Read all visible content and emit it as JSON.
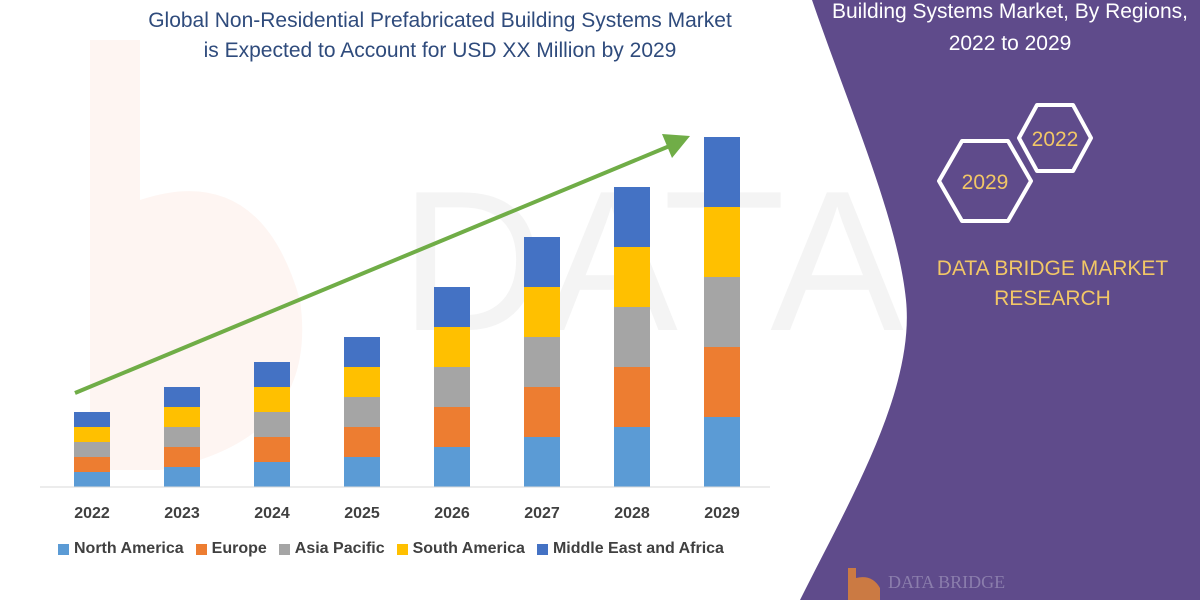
{
  "title": {
    "line1": "Global Non-Residential Prefabricated Building Systems Market",
    "line2": "is Expected to Account for USD XX Million by 2029"
  },
  "side_panel": {
    "title_line1": "Building Systems Market, By Regions,",
    "title_line2": "2022 to 2029",
    "hex_top": "2022",
    "hex_bottom": "2029",
    "brand_line1": "DATA BRIDGE MARKET",
    "brand_line2": "RESEARCH",
    "background_color": "#5f4b8b",
    "accent_color": "#f2c766",
    "logo_text": "DATA BRIDGE"
  },
  "chart_data": {
    "type": "bar",
    "stacked": true,
    "title": "",
    "xlabel": "",
    "ylabel": "",
    "ylim": [
      0,
      360
    ],
    "grid": false,
    "legend_position": "bottom",
    "trend_arrow": true,
    "categories": [
      "2022",
      "2023",
      "2024",
      "2025",
      "2026",
      "2027",
      "2028",
      "2029"
    ],
    "series": [
      {
        "name": "North America",
        "color": "#5b9bd5",
        "values": [
          15,
          20,
          25,
          30,
          40,
          50,
          60,
          70
        ]
      },
      {
        "name": "Europe",
        "color": "#ed7d31",
        "values": [
          15,
          20,
          25,
          30,
          40,
          50,
          60,
          70
        ]
      },
      {
        "name": "Asia Pacific",
        "color": "#a5a5a5",
        "values": [
          15,
          20,
          25,
          30,
          40,
          50,
          60,
          70
        ]
      },
      {
        "name": "South America",
        "color": "#ffc000",
        "values": [
          15,
          20,
          25,
          30,
          40,
          50,
          60,
          70
        ]
      },
      {
        "name": "Middle East and Africa",
        "color": "#4472c4",
        "values": [
          15,
          20,
          25,
          30,
          40,
          50,
          60,
          70
        ]
      }
    ],
    "arrow_color": "#70ad47"
  }
}
